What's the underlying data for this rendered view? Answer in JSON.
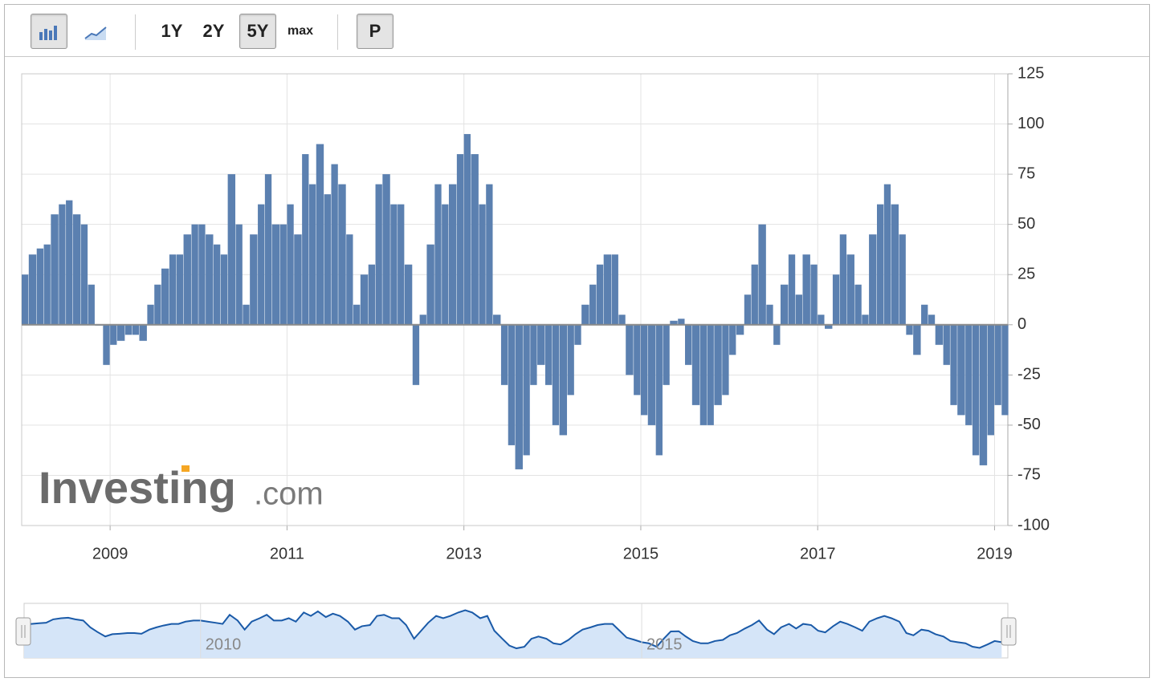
{
  "toolbar": {
    "ranges": [
      "1Y",
      "2Y",
      "5Y",
      "max"
    ],
    "active_range": "5Y",
    "extra": "P"
  },
  "watermark": {
    "brand": "Investing",
    "suffix": ".com"
  },
  "chart_data": {
    "type": "bar",
    "color": "#5b80b0",
    "grid": true,
    "x": [
      2008,
      2008.08,
      2008.17,
      2008.25,
      2008.33,
      2008.42,
      2008.5,
      2008.58,
      2008.67,
      2008.75,
      2008.83,
      2008.92,
      2009,
      2009.08,
      2009.17,
      2009.25,
      2009.33,
      2009.42,
      2009.5,
      2009.58,
      2009.67,
      2009.75,
      2009.83,
      2009.92,
      2010,
      2010.08,
      2010.17,
      2010.25,
      2010.33,
      2010.42,
      2010.5,
      2010.58,
      2010.67,
      2010.75,
      2010.83,
      2010.92,
      2011,
      2011.08,
      2011.17,
      2011.25,
      2011.33,
      2011.42,
      2011.5,
      2011.58,
      2011.67,
      2011.75,
      2011.83,
      2011.92,
      2012,
      2012.08,
      2012.17,
      2012.25,
      2012.33,
      2012.42,
      2012.5,
      2012.58,
      2012.67,
      2012.75,
      2012.83,
      2012.92,
      2013,
      2013.08,
      2013.17,
      2013.25,
      2013.33,
      2013.42,
      2013.5,
      2013.58,
      2013.67,
      2013.75,
      2013.83,
      2013.92,
      2014,
      2014.08,
      2014.17,
      2014.25,
      2014.33,
      2014.42,
      2014.5,
      2014.58,
      2014.67,
      2014.75,
      2014.83,
      2014.92,
      2015,
      2015.08,
      2015.17,
      2015.25,
      2015.33,
      2015.42,
      2015.5,
      2015.58,
      2015.67,
      2015.75,
      2015.83,
      2015.92,
      2016,
      2016.08,
      2016.17,
      2016.25,
      2016.33,
      2016.42,
      2016.5,
      2016.58,
      2016.67,
      2016.75,
      2016.83,
      2016.92,
      2017,
      2017.08,
      2017.17,
      2017.25,
      2017.33,
      2017.42,
      2017.5,
      2017.58,
      2017.67,
      2017.75,
      2017.83,
      2017.92,
      2018,
      2018.08,
      2018.17,
      2018.25,
      2018.33,
      2018.42,
      2018.5,
      2018.58,
      2018.67,
      2018.75,
      2018.83,
      2018.92,
      2019,
      2019.08
    ],
    "values": [
      25,
      35,
      38,
      40,
      55,
      60,
      62,
      55,
      50,
      20,
      0,
      -20,
      -10,
      -8,
      -5,
      -5,
      -8,
      10,
      20,
      28,
      35,
      35,
      45,
      50,
      50,
      45,
      40,
      35,
      75,
      50,
      10,
      45,
      60,
      75,
      50,
      50,
      60,
      45,
      85,
      70,
      90,
      65,
      80,
      70,
      45,
      10,
      25,
      30,
      70,
      75,
      60,
      60,
      30,
      -30,
      5,
      40,
      70,
      60,
      70,
      85,
      95,
      85,
      60,
      70,
      5,
      -30,
      -60,
      -72,
      -65,
      -30,
      -20,
      -30,
      -50,
      -55,
      -35,
      -10,
      10,
      20,
      30,
      35,
      35,
      5,
      -25,
      -35,
      -45,
      -50,
      -65,
      -30,
      2,
      3,
      -20,
      -40,
      -50,
      -50,
      -40,
      -35,
      -15,
      -5,
      15,
      30,
      50,
      10,
      -10,
      20,
      35,
      15,
      35,
      30,
      5,
      -2,
      25,
      45,
      35,
      20,
      5,
      45,
      60,
      70,
      60,
      45,
      -5,
      -15,
      10,
      5,
      -10,
      -20,
      -40,
      -45,
      -50,
      -65,
      -70,
      -55,
      -40,
      -45
    ],
    "xlim": [
      2008.0,
      2019.15
    ],
    "xticks": [
      2009,
      2011,
      2013,
      2015,
      2017,
      2019
    ],
    "ylim": [
      -100,
      125
    ],
    "yticks": [
      -100,
      -75,
      -50,
      -25,
      0,
      25,
      50,
      75,
      100,
      125
    ],
    "navigator_xticks": [
      2010,
      2015
    ]
  }
}
